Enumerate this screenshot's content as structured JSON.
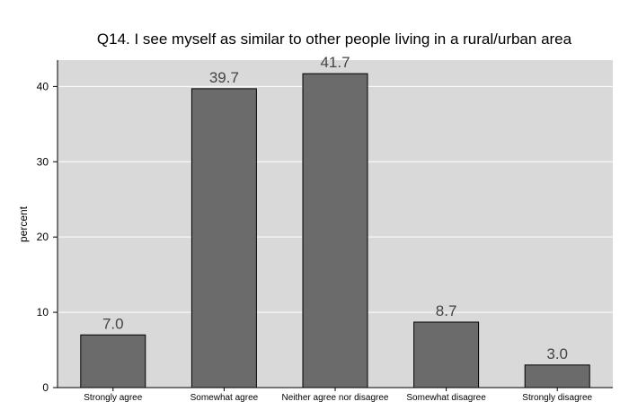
{
  "chart_data": {
    "type": "bar",
    "title": "Q14. I see myself as similar to other people living in a rural/urban area",
    "xlabel": "",
    "ylabel": "percent",
    "categories": [
      "Strongly agree",
      "Somewhat agree",
      "Neither agree nor disagree",
      "Somewhat disagree",
      "Strongly disagree"
    ],
    "values": [
      7.0,
      39.7,
      41.7,
      8.7,
      3.0
    ],
    "data_labels": [
      "7.0",
      "39.7",
      "41.7",
      "8.7",
      "3.0"
    ],
    "ylim": [
      0,
      43.5
    ],
    "yticks": [
      0,
      10,
      20,
      30,
      40
    ],
    "grid": true,
    "colors": {
      "plot_background": "#d9d9d9",
      "bar_fill": "#6b6b6b",
      "bar_edge": "#000000",
      "gridline": "#ffffff"
    }
  }
}
